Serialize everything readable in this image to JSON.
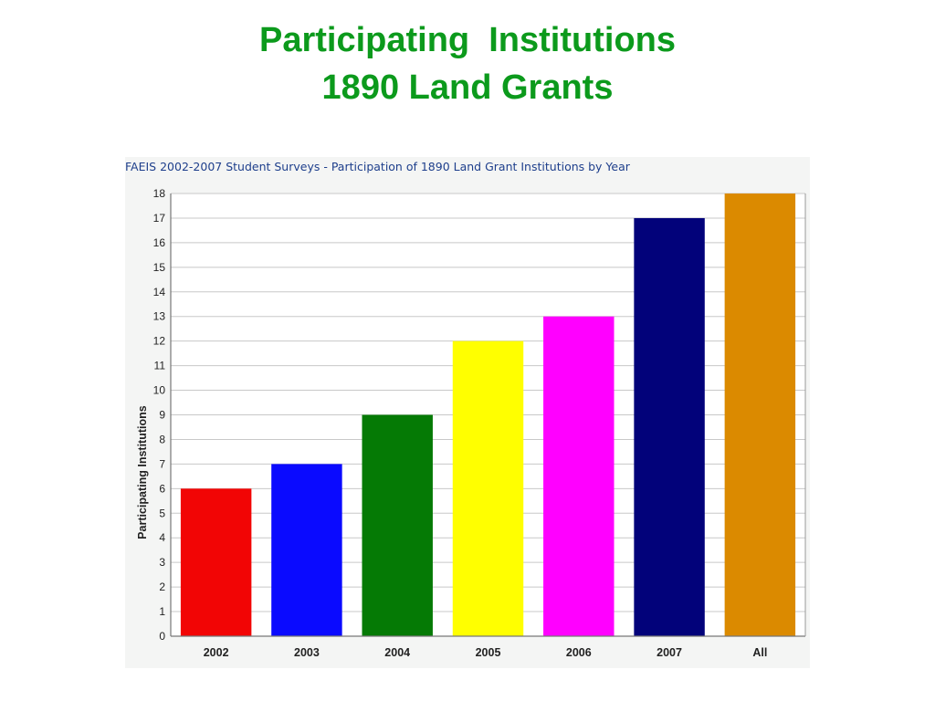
{
  "slide": {
    "title_line1": "Participating  Institutions",
    "title_line2": "1890 Land Grants"
  },
  "chart_data": {
    "type": "bar",
    "title": "FAEIS 2002-2007 Student Surveys - Participation of 1890 Land Grant Institutions by Year",
    "xlabel": "",
    "ylabel": "Participating Institutions",
    "categories": [
      "2002",
      "2003",
      "2004",
      "2005",
      "2006",
      "2007",
      "All"
    ],
    "values": [
      6,
      7,
      9,
      12,
      13,
      17,
      18
    ],
    "colors": [
      "#f20505",
      "#0a0aff",
      "#057a05",
      "#ffff00",
      "#ff00ff",
      "#02027a",
      "#db8a00"
    ],
    "ylim": [
      0,
      18
    ],
    "yticks": [
      0,
      1,
      2,
      3,
      4,
      5,
      6,
      7,
      8,
      9,
      10,
      11,
      12,
      13,
      14,
      15,
      16,
      17,
      18
    ],
    "grid": true,
    "legend": "none"
  }
}
